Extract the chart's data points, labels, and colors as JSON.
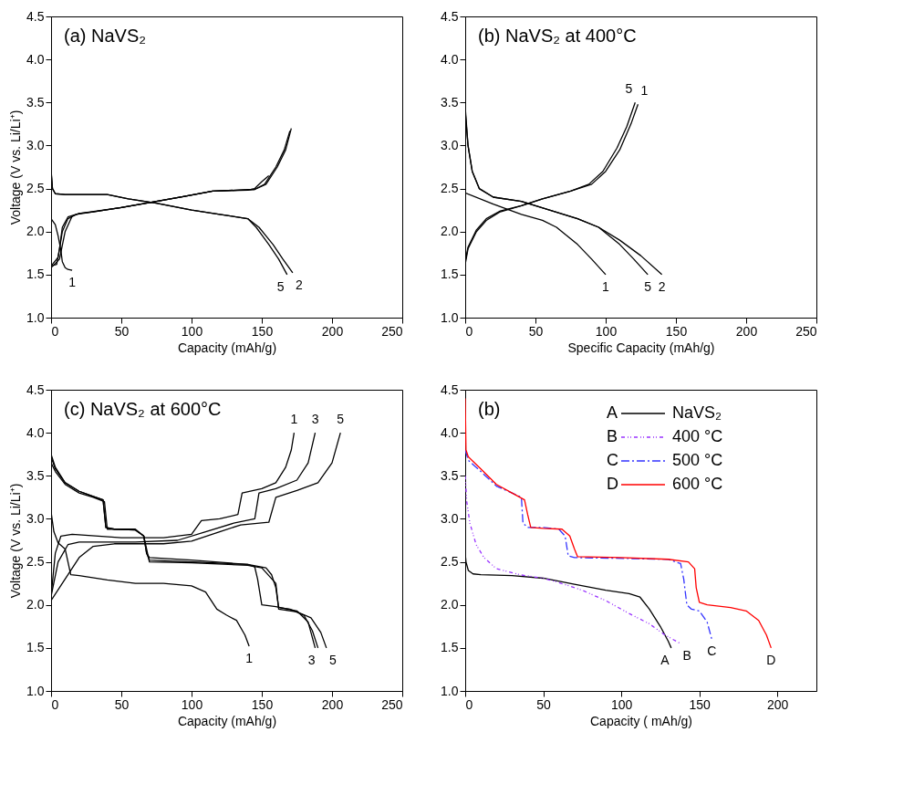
{
  "chart_data": [
    {
      "type": "line",
      "title": "(a) NaVS₂",
      "xlabel": "Capacity (mAh/g)",
      "ylabel": "Voltage (V vs. Li/Li⁺)",
      "xlim": [
        0,
        250
      ],
      "xticks": [
        0,
        50,
        100,
        150,
        200,
        250
      ],
      "ylim": [
        1,
        4.5
      ],
      "yticks": [
        {
          "value": 1,
          "label": "1.0"
        },
        1.5,
        {
          "value": 2,
          "label": "2.0"
        },
        2.5,
        {
          "value": 3,
          "label": "3.0"
        },
        3.5,
        {
          "value": 4,
          "label": "4.0"
        },
        4.5
      ],
      "series": [
        {
          "color": "#000000",
          "x": [
            0,
            3,
            5,
            7,
            8,
            10,
            12,
            15
          ],
          "values": [
            2.15,
            2.08,
            1.95,
            1.78,
            1.65,
            1.58,
            1.56,
            1.55
          ]
        },
        {
          "color": "#000000",
          "x": [
            0,
            1,
            3,
            10,
            40,
            55,
            75,
            100,
            120,
            140,
            148,
            158,
            165,
            172
          ],
          "values": [
            2.72,
            2.5,
            2.44,
            2.43,
            2.43,
            2.38,
            2.33,
            2.25,
            2.2,
            2.15,
            2.05,
            1.85,
            1.68,
            1.52
          ]
        },
        {
          "color": "#000000",
          "x": [
            0,
            1,
            3,
            10,
            40,
            55,
            75,
            100,
            120,
            140,
            146,
            155,
            162,
            168
          ],
          "values": [
            2.7,
            2.5,
            2.44,
            2.43,
            2.43,
            2.38,
            2.33,
            2.25,
            2.2,
            2.15,
            2.05,
            1.85,
            1.68,
            1.5
          ]
        },
        {
          "color": "#000000",
          "x": [
            0,
            5,
            8,
            12,
            18,
            30,
            50,
            75,
            95,
            115,
            145,
            152,
            160,
            166,
            170
          ],
          "values": [
            1.6,
            1.7,
            2.0,
            2.15,
            2.2,
            2.23,
            2.28,
            2.35,
            2.41,
            2.47,
            2.49,
            2.55,
            2.75,
            2.95,
            3.17
          ]
        },
        {
          "color": "#000000",
          "x": [
            0,
            6,
            10,
            15,
            20,
            30,
            50,
            75,
            95,
            115,
            145,
            153,
            161,
            167,
            171
          ],
          "values": [
            1.58,
            1.68,
            2.0,
            2.18,
            2.21,
            2.23,
            2.28,
            2.35,
            2.41,
            2.47,
            2.49,
            2.55,
            2.75,
            2.95,
            3.2
          ]
        },
        {
          "color": "#000000",
          "x": [
            0,
            4,
            6,
            8,
            12,
            20,
            50,
            75,
            95,
            115,
            140,
            145,
            150,
            155
          ],
          "values": [
            1.6,
            1.62,
            1.8,
            2.05,
            2.17,
            2.21,
            2.28,
            2.35,
            2.41,
            2.47,
            2.48,
            2.5,
            2.58,
            2.65
          ]
        }
      ],
      "annotations": [
        {
          "text": "1",
          "x": 15,
          "y": 1.55
        },
        {
          "text": "5",
          "x": 168,
          "y": 1.5
        },
        {
          "text": "2",
          "x": 172,
          "y": 1.52
        }
      ]
    },
    {
      "type": "line",
      "title": "(b) NaVS₂ at 400°C",
      "xlabel": "Specific Capacity (mAh/g)",
      "xlim": [
        0,
        250
      ],
      "xticks": [
        0,
        50,
        100,
        150,
        200,
        250
      ],
      "ylim": [
        1,
        4.5
      ],
      "yticks": [
        {
          "value": 1,
          "label": "1.0"
        },
        1.5,
        {
          "value": 2,
          "label": "2.0"
        },
        2.5,
        {
          "value": 3,
          "label": "3.0"
        },
        3.5,
        {
          "value": 4,
          "label": "4.0"
        },
        4.5
      ],
      "series": [
        {
          "color": "#000000",
          "x": [
            0,
            20,
            40,
            55,
            65,
            80,
            90,
            100
          ],
          "values": [
            2.45,
            2.32,
            2.2,
            2.13,
            2.05,
            1.85,
            1.68,
            1.5
          ]
        },
        {
          "color": "#000000",
          "x": [
            0,
            2,
            5,
            10,
            20,
            40,
            60,
            80,
            95,
            110,
            125,
            140
          ],
          "values": [
            3.45,
            3.0,
            2.7,
            2.5,
            2.4,
            2.35,
            2.25,
            2.15,
            2.05,
            1.9,
            1.72,
            1.5
          ]
        },
        {
          "color": "#000000",
          "x": [
            0,
            2,
            5,
            10,
            20,
            40,
            60,
            80,
            95,
            110,
            120,
            130
          ],
          "values": [
            3.4,
            3.0,
            2.7,
            2.5,
            2.4,
            2.35,
            2.25,
            2.15,
            2.05,
            1.85,
            1.68,
            1.5
          ]
        },
        {
          "color": "#000000",
          "x": [
            0,
            2,
            8,
            15,
            25,
            40,
            55,
            75,
            90,
            100,
            110,
            118,
            123
          ],
          "values": [
            1.62,
            1.8,
            2.0,
            2.13,
            2.23,
            2.3,
            2.38,
            2.47,
            2.55,
            2.7,
            2.95,
            3.25,
            3.48
          ]
        },
        {
          "color": "#000000",
          "x": [
            0,
            2,
            8,
            15,
            25,
            40,
            55,
            75,
            88,
            98,
            108,
            115,
            121
          ],
          "values": [
            1.65,
            1.82,
            2.02,
            2.15,
            2.24,
            2.3,
            2.38,
            2.47,
            2.55,
            2.7,
            2.97,
            3.22,
            3.5
          ]
        }
      ],
      "annotations": [
        {
          "text": "5",
          "x": 121,
          "y": 3.5
        },
        {
          "text": "1",
          "x": 123,
          "y": 3.48
        },
        {
          "text": "1",
          "x": 100,
          "y": 1.5
        },
        {
          "text": "5",
          "x": 130,
          "y": 1.5
        },
        {
          "text": "2",
          "x": 140,
          "y": 1.5
        }
      ]
    },
    {
      "type": "line",
      "title": "(c) NaVS₂ at 600°C",
      "xlabel": "Capacity (mAh/g)",
      "ylabel": "Voltage (V vs. Li/Li⁺)",
      "xlim": [
        0,
        250
      ],
      "xticks": [
        0,
        50,
        100,
        150,
        200,
        250
      ],
      "ylim": [
        1,
        4.5
      ],
      "yticks": [
        {
          "value": 1,
          "label": "1.0"
        },
        1.5,
        {
          "value": 2,
          "label": "2.0"
        },
        2.5,
        {
          "value": 3,
          "label": "3.0"
        },
        3.5,
        {
          "value": 4,
          "label": "4.0"
        },
        4.5
      ],
      "series": [
        {
          "color": "#000000",
          "x": [
            0,
            2,
            5,
            10,
            14,
            20,
            40,
            60,
            80,
            100,
            110,
            118,
            125,
            132,
            138,
            141
          ],
          "values": [
            3.08,
            2.85,
            2.72,
            2.65,
            2.35,
            2.34,
            2.29,
            2.25,
            2.25,
            2.22,
            2.15,
            1.95,
            1.88,
            1.82,
            1.65,
            1.52
          ]
        },
        {
          "color": "#000000",
          "x": [
            0,
            3,
            10,
            20,
            30,
            37,
            39,
            45,
            60,
            66,
            68,
            70,
            100,
            140,
            145,
            147,
            150,
            160,
            175,
            183,
            188
          ],
          "values": [
            3.75,
            3.6,
            3.42,
            3.32,
            3.26,
            3.22,
            2.9,
            2.88,
            2.87,
            2.8,
            2.6,
            2.55,
            2.52,
            2.47,
            2.44,
            2.3,
            2.0,
            1.98,
            1.93,
            1.8,
            1.5
          ]
        },
        {
          "color": "#000000",
          "x": [
            0,
            3,
            10,
            20,
            30,
            37,
            39,
            45,
            60,
            66,
            68,
            70,
            100,
            140,
            153,
            157,
            160,
            162,
            170,
            180,
            186,
            190
          ],
          "values": [
            3.72,
            3.58,
            3.42,
            3.32,
            3.26,
            3.22,
            2.9,
            2.88,
            2.87,
            2.8,
            2.6,
            2.52,
            2.5,
            2.47,
            2.43,
            2.35,
            2.2,
            1.97,
            1.95,
            1.88,
            1.7,
            1.5
          ]
        },
        {
          "color": "#000000",
          "x": [
            0,
            3,
            10,
            20,
            30,
            38,
            40,
            60,
            66,
            70,
            100,
            140,
            150,
            160,
            162,
            175,
            185,
            192,
            196
          ],
          "values": [
            3.65,
            3.55,
            3.4,
            3.3,
            3.25,
            3.2,
            2.88,
            2.88,
            2.8,
            2.5,
            2.49,
            2.46,
            2.43,
            2.25,
            1.95,
            1.92,
            1.85,
            1.68,
            1.5
          ]
        },
        {
          "color": "#000000",
          "x": [
            0,
            3,
            7,
            15,
            50,
            80,
            100,
            107,
            120,
            133,
            136,
            150,
            160,
            167,
            171,
            173
          ],
          "values": [
            2.1,
            2.6,
            2.8,
            2.82,
            2.78,
            2.78,
            2.82,
            2.98,
            3.0,
            3.05,
            3.3,
            3.35,
            3.42,
            3.6,
            3.8,
            4.0
          ]
        },
        {
          "color": "#000000",
          "x": [
            0,
            5,
            12,
            20,
            60,
            90,
            110,
            130,
            145,
            148,
            160,
            175,
            183,
            188
          ],
          "values": [
            2.1,
            2.5,
            2.7,
            2.73,
            2.73,
            2.75,
            2.85,
            2.95,
            3.0,
            3.3,
            3.35,
            3.45,
            3.65,
            4.0
          ]
        },
        {
          "color": "#000000",
          "x": [
            0,
            10,
            20,
            30,
            45,
            80,
            100,
            120,
            135,
            155,
            160,
            175,
            190,
            200,
            206
          ],
          "values": [
            2.05,
            2.3,
            2.55,
            2.68,
            2.71,
            2.71,
            2.74,
            2.85,
            2.93,
            2.96,
            3.25,
            3.33,
            3.42,
            3.65,
            4.0
          ]
        }
      ],
      "annotations": [
        {
          "text": "1",
          "x": 173,
          "y": 4.0
        },
        {
          "text": "3",
          "x": 188,
          "y": 4.0
        },
        {
          "text": "5",
          "x": 206,
          "y": 4.0
        },
        {
          "text": "1",
          "x": 141,
          "y": 1.52
        },
        {
          "text": "3",
          "x": 190,
          "y": 1.5
        },
        {
          "text": "5",
          "x": 196,
          "y": 1.5
        }
      ]
    },
    {
      "type": "line",
      "title": "(b)",
      "xlabel": "Capacity ( mAh/g)",
      "legend": "top right",
      "xlim": [
        0,
        225
      ],
      "xticks": [
        0,
        50,
        100,
        150,
        200
      ],
      "ylim": [
        1,
        4.5
      ],
      "yticks": [
        {
          "value": 1,
          "label": "1.0"
        },
        1.5,
        {
          "value": 2,
          "label": "2.0"
        },
        2.5,
        {
          "value": 3,
          "label": "3.0"
        },
        3.5,
        {
          "value": 4,
          "label": "4.0"
        },
        4.5
      ],
      "series": [
        {
          "name": "NaVS₂",
          "color": "#000000",
          "line_style": "solid",
          "x": [
            0,
            0.5,
            2,
            5,
            10,
            30,
            50,
            70,
            90,
            105,
            112,
            118,
            125,
            130,
            132
          ],
          "values": [
            2.6,
            2.5,
            2.4,
            2.36,
            2.35,
            2.34,
            2.31,
            2.24,
            2.17,
            2.13,
            2.09,
            1.95,
            1.75,
            1.58,
            1.5
          ]
        },
        {
          "name": "400 °C",
          "color": "#9933ff",
          "line_style": "dotted",
          "x": [
            0,
            1,
            3,
            7,
            12,
            20,
            35,
            50,
            60,
            75,
            90,
            105,
            118,
            128,
            138
          ],
          "values": [
            3.5,
            3.2,
            2.95,
            2.7,
            2.55,
            2.42,
            2.35,
            2.31,
            2.26,
            2.17,
            2.05,
            1.9,
            1.78,
            1.65,
            1.55
          ]
        },
        {
          "name": "500 °C",
          "color": "#3333ff",
          "line_style": "dashed",
          "x": [
            0,
            2,
            10,
            20,
            30,
            36,
            37,
            40,
            50,
            60,
            64,
            66,
            70,
            130,
            138,
            140,
            142,
            145,
            150,
            155,
            158
          ],
          "values": [
            3.8,
            3.68,
            3.55,
            3.38,
            3.3,
            3.25,
            2.95,
            2.9,
            2.9,
            2.88,
            2.8,
            2.57,
            2.55,
            2.53,
            2.48,
            2.3,
            2.0,
            1.95,
            1.93,
            1.8,
            1.6
          ]
        },
        {
          "name": "600 °C",
          "color": "#ff0000",
          "line_style": "solid",
          "x": [
            0,
            0.5,
            2,
            10,
            20,
            30,
            38,
            40,
            42,
            50,
            62,
            67,
            70,
            72,
            100,
            130,
            143,
            147,
            148,
            150,
            155,
            170,
            180,
            188,
            193,
            196
          ],
          "values": [
            4.4,
            3.8,
            3.72,
            3.58,
            3.4,
            3.3,
            3.22,
            3.05,
            2.9,
            2.89,
            2.88,
            2.8,
            2.65,
            2.56,
            2.55,
            2.53,
            2.5,
            2.42,
            2.2,
            2.03,
            2.0,
            1.97,
            1.93,
            1.82,
            1.65,
            1.5
          ]
        }
      ],
      "annotations": [
        {
          "text": "A",
          "x": 132,
          "y": 1.5
        },
        {
          "text": "B",
          "x": 138,
          "y": 1.55
        },
        {
          "text": "C",
          "x": 158,
          "y": 1.6
        },
        {
          "text": "D",
          "x": 196,
          "y": 1.5
        }
      ]
    }
  ]
}
